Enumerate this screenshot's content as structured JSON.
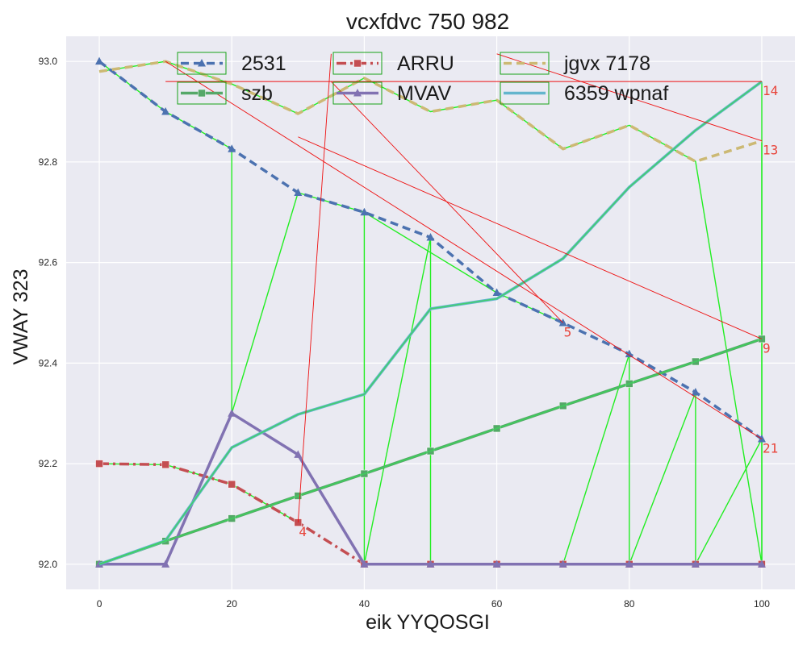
{
  "chart_data": {
    "type": "line",
    "title": "vcxfdvc 750 982",
    "xlabel": "eik YYQOSGI",
    "ylabel": "VWAY 323",
    "x": [
      0,
      10,
      20,
      30,
      40,
      50,
      60,
      70,
      80,
      90,
      100
    ],
    "xlim": [
      -5,
      105
    ],
    "ylim": [
      91.95,
      93.05
    ],
    "xticks": [
      0,
      20,
      40,
      60,
      80,
      100
    ],
    "yticks": [
      92.0,
      92.2,
      92.4,
      92.6,
      92.8,
      93.0
    ],
    "xtick_labels": [
      "0",
      "20",
      "40",
      "60",
      "80",
      "100"
    ],
    "ytick_labels": [
      "92.0",
      "92.2",
      "92.4",
      "92.6",
      "92.8",
      "93.0"
    ],
    "grid": true,
    "legend_position": "top",
    "series": [
      {
        "name": "2531",
        "color": "#4c72b0",
        "dash": "dashed",
        "marker": "triangle",
        "values": [
          93.0,
          92.9,
          92.826,
          92.739,
          92.7,
          92.65,
          92.54,
          92.48,
          92.418,
          92.342,
          92.249
        ]
      },
      {
        "name": "ARRU",
        "color": "#c44e52",
        "dash": "dashdot",
        "marker": "square",
        "values": [
          92.2,
          92.198,
          92.159,
          92.083,
          92.0,
          92.0,
          92.0,
          92.0,
          92.0,
          92.0,
          92.0
        ]
      },
      {
        "name": "jgvx 7178",
        "color": "#ccb974",
        "dash": "dashed",
        "marker": "none",
        "values": [
          92.98,
          93.0,
          92.955,
          92.896,
          92.967,
          92.9,
          92.923,
          92.826,
          92.873,
          92.801,
          92.842
        ]
      },
      {
        "name": "szb",
        "color": "#55a868",
        "dash": "solid",
        "marker": "square",
        "values": [
          92.0,
          92.046,
          92.091,
          92.136,
          92.18,
          92.225,
          92.27,
          92.315,
          92.359,
          92.403,
          92.448
        ]
      },
      {
        "name": "MVAV",
        "color": "#8172b2",
        "dash": "solid",
        "marker": "triangle",
        "values": [
          92.0,
          92.0,
          92.3,
          92.218,
          92.0,
          92.0,
          92.0,
          92.0,
          92.0,
          92.0,
          92.0
        ]
      },
      {
        "name": "6359 wpnaf",
        "color": "#64b5cd",
        "dash": "solid",
        "marker": "none",
        "values": [
          92.0,
          92.047,
          92.232,
          92.298,
          92.338,
          92.508,
          92.528,
          92.608,
          92.75,
          92.863,
          92.96
        ]
      }
    ],
    "overlays": {
      "green_polylines": [
        [
          [
            0,
            93.0
          ],
          [
            10,
            92.9
          ],
          [
            20,
            92.826
          ],
          [
            20,
            92.3
          ],
          [
            30,
            92.739
          ],
          [
            40,
            92.7
          ],
          [
            40,
            92.0
          ],
          [
            50,
            92.65
          ],
          [
            50,
            92.0
          ],
          [
            60,
            92.0
          ],
          [
            70,
            92.0
          ],
          [
            80,
            92.418
          ],
          [
            80,
            92.0
          ],
          [
            90,
            92.342
          ],
          [
            90,
            92.0
          ],
          [
            100,
            92.249
          ],
          [
            100,
            92.0
          ],
          [
            100,
            92.96
          ]
        ],
        [
          [
            0,
            92.98
          ],
          [
            10,
            93.0
          ],
          [
            20,
            92.955
          ],
          [
            30,
            92.896
          ],
          [
            40,
            92.967
          ],
          [
            50,
            92.9
          ],
          [
            60,
            92.923
          ],
          [
            70,
            92.826
          ],
          [
            80,
            92.873
          ],
          [
            90,
            92.801
          ],
          [
            100,
            92.0
          ],
          [
            100,
            92.842
          ]
        ],
        [
          [
            40,
            92.7
          ],
          [
            50,
            92.62
          ],
          [
            60,
            92.54
          ],
          [
            70,
            92.48
          ]
        ],
        [
          [
            0,
            92.2
          ],
          [
            10,
            92.198
          ],
          [
            20,
            92.159
          ],
          [
            30,
            92.083
          ]
        ]
      ],
      "red_lines": [
        [
          [
            10,
            93.0
          ],
          [
            100,
            92.249
          ]
        ],
        [
          [
            10,
            92.96
          ],
          [
            100,
            92.96
          ]
        ],
        [
          [
            60,
            93.015
          ],
          [
            100,
            92.842
          ]
        ],
        [
          [
            30,
            92.85
          ],
          [
            100,
            92.448
          ]
        ],
        [
          [
            30,
            92.083
          ],
          [
            35,
            93.015
          ]
        ],
        [
          [
            35,
            92.96
          ],
          [
            70,
            92.48
          ]
        ]
      ],
      "annotations": [
        {
          "text": "14",
          "x": 100,
          "y": 92.96
        },
        {
          "text": "13",
          "x": 100,
          "y": 92.842
        },
        {
          "text": "5",
          "x": 70,
          "y": 92.48
        },
        {
          "text": "9",
          "x": 100,
          "y": 92.448
        },
        {
          "text": "21",
          "x": 100,
          "y": 92.249
        },
        {
          "text": "4",
          "x": 30,
          "y": 92.083
        }
      ]
    }
  }
}
